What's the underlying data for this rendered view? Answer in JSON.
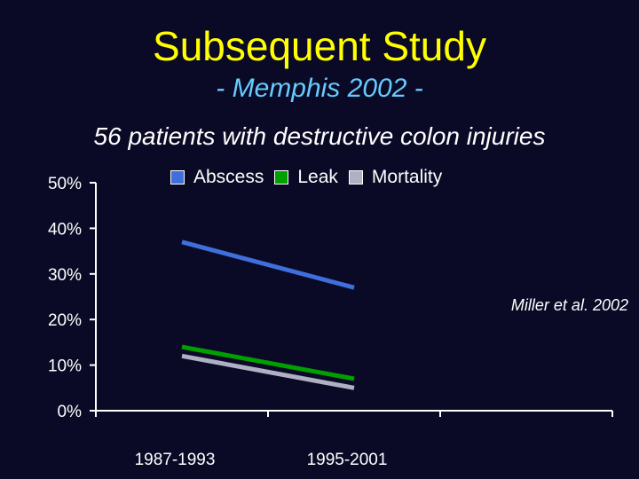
{
  "title": "Subsequent Study",
  "subtitle": "- Memphis 2002 -",
  "caption": "56 patients with destructive colon injuries",
  "citation": "Miller et al. 2002",
  "colors": {
    "background": "#0a0a26",
    "title": "#ffff00",
    "subtitle": "#66ccff",
    "abscess": "#3f6fdc",
    "leak": "#00a000",
    "mortality": "#b0b0c4"
  },
  "chart_data": {
    "type": "line",
    "categories": [
      "1987-1993",
      "1995-2001"
    ],
    "y_ticks": [
      "0%",
      "10%",
      "20%",
      "30%",
      "40%",
      "50%"
    ],
    "ylim": [
      0,
      50
    ],
    "legend_position": "top",
    "grid": false,
    "series": [
      {
        "name": "Abscess",
        "color": "#3f6fdc",
        "values": [
          37,
          27
        ]
      },
      {
        "name": "Leak",
        "color": "#00a000",
        "values": [
          14,
          7
        ]
      },
      {
        "name": "Mortality",
        "color": "#b0b0c4",
        "values": [
          12,
          5
        ]
      }
    ]
  }
}
